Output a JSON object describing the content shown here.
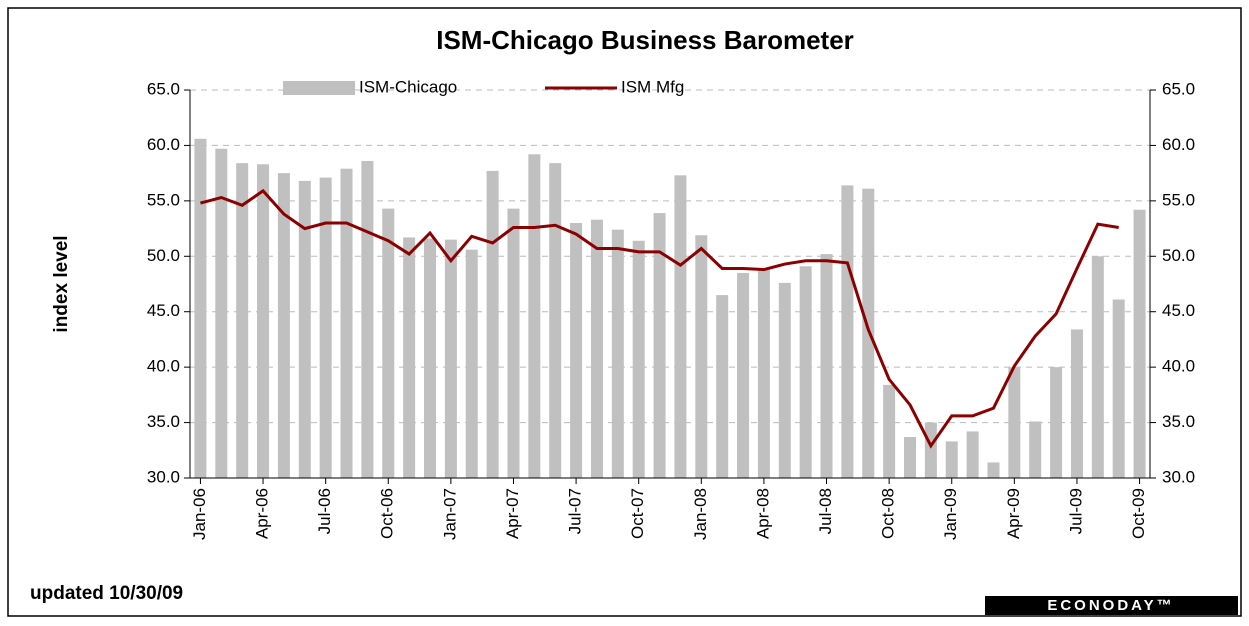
{
  "chart_data": {
    "type": "bar-line",
    "title": "ISM-Chicago Business Barometer",
    "ylabel": "index level",
    "note": "updated 10/30/09",
    "source": "ECONODAY™",
    "categories": [
      "Jan-06",
      null,
      null,
      "Apr-06",
      null,
      null,
      "Jul-06",
      null,
      null,
      "Oct-06",
      null,
      null,
      "Jan-07",
      null,
      null,
      "Apr-07",
      null,
      null,
      "Jul-07",
      null,
      null,
      "Oct-07",
      null,
      null,
      "Jan-08",
      null,
      null,
      "Apr-08",
      null,
      null,
      "Jul-08",
      null,
      null,
      "Oct-08",
      null,
      null,
      "Jan-09",
      null,
      null,
      "Apr-09",
      null,
      null,
      "Jul-09",
      null,
      null,
      "Oct-09"
    ],
    "series": [
      {
        "name": "ISM-Chicago",
        "type": "bar",
        "color": "#c0c0c0",
        "values": [
          60.6,
          59.7,
          58.4,
          58.3,
          57.5,
          56.8,
          57.1,
          57.9,
          58.6,
          54.3,
          51.7,
          51.6,
          51.5,
          50.6,
          57.7,
          54.3,
          59.2,
          58.4,
          53.0,
          53.3,
          52.4,
          51.4,
          53.9,
          57.3,
          51.9,
          46.5,
          48.5,
          48.8,
          47.6,
          49.1,
          50.2,
          56.4,
          56.1,
          38.4,
          33.7,
          35.0,
          33.3,
          34.2,
          31.4,
          40.0,
          35.1,
          40.0,
          43.4,
          50.0,
          46.1,
          54.2
        ]
      },
      {
        "name": "ISM Mfg",
        "type": "line",
        "color": "#8b0000",
        "axis": "y2",
        "values": [
          54.8,
          55.3,
          54.6,
          55.9,
          53.8,
          52.5,
          53.0,
          53.0,
          52.2,
          51.4,
          50.2,
          52.1,
          49.6,
          51.8,
          51.2,
          52.6,
          52.6,
          52.8,
          52.0,
          50.7,
          50.7,
          50.4,
          50.4,
          49.2,
          50.7,
          48.9,
          48.9,
          48.8,
          49.3,
          49.6,
          49.6,
          49.4,
          43.4,
          38.9,
          36.6,
          32.9,
          35.6,
          35.6,
          36.3,
          40.1,
          42.8,
          44.8,
          48.9,
          52.9,
          52.6,
          null
        ]
      }
    ],
    "ylim": [
      30,
      65
    ],
    "yticks": [
      {
        "value": 30,
        "label": "30.0"
      },
      {
        "value": 35,
        "label": "35.0"
      },
      {
        "value": 40,
        "label": "40.0"
      },
      {
        "value": 45,
        "label": "45.0"
      },
      {
        "value": 50,
        "label": "50.0"
      },
      {
        "value": 55,
        "label": "55.0"
      },
      {
        "value": 60,
        "label": "60.0"
      },
      {
        "value": 65,
        "label": "65.0"
      }
    ],
    "y2lim": [
      30,
      65
    ],
    "y2ticks": [
      {
        "value": 30,
        "label": "30.0"
      },
      {
        "value": 35,
        "label": "35.0"
      },
      {
        "value": 40,
        "label": "40.0"
      },
      {
        "value": 45,
        "label": "45.0"
      },
      {
        "value": 50,
        "label": "50.0"
      },
      {
        "value": 55,
        "label": "55.0"
      },
      {
        "value": 60,
        "label": "60.0"
      },
      {
        "value": 65,
        "label": "65.0"
      }
    ],
    "grid": true
  }
}
